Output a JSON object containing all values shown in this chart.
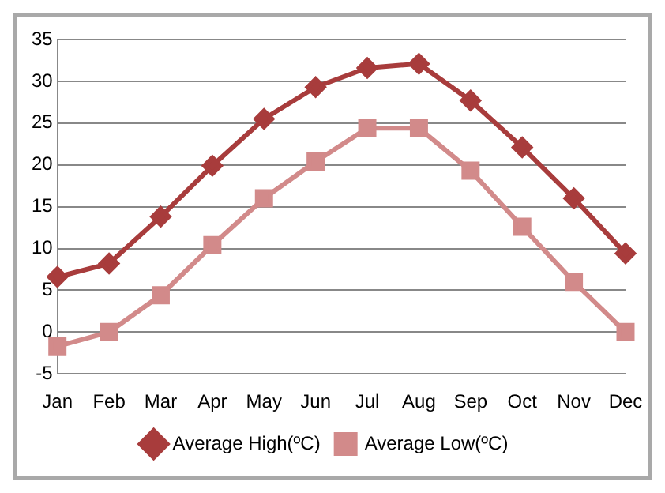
{
  "chart_data": {
    "type": "line",
    "categories": [
      "Jan",
      "Feb",
      "Mar",
      "Apr",
      "May",
      "Jun",
      "Jul",
      "Aug",
      "Sep",
      "Oct",
      "Nov",
      "Dec"
    ],
    "series": [
      {
        "name": "Average High(ºC)",
        "color": "#a83c3c",
        "marker": "diamond",
        "values": [
          6.6,
          8.2,
          13.8,
          19.9,
          25.5,
          29.3,
          31.6,
          32.1,
          27.7,
          22.1,
          16.0,
          9.4
        ]
      },
      {
        "name": "Average Low(ºC)",
        "color": "#d28a8a",
        "marker": "square",
        "values": [
          -1.7,
          0,
          4.4,
          10.4,
          16.0,
          20.4,
          24.4,
          24.4,
          19.3,
          12.6,
          6.0,
          0
        ]
      }
    ],
    "ylim": [
      -5,
      35
    ],
    "yticks": [
      -5,
      0,
      5,
      10,
      15,
      20,
      25,
      30,
      35
    ],
    "grid": "y",
    "legend": "bottom"
  }
}
